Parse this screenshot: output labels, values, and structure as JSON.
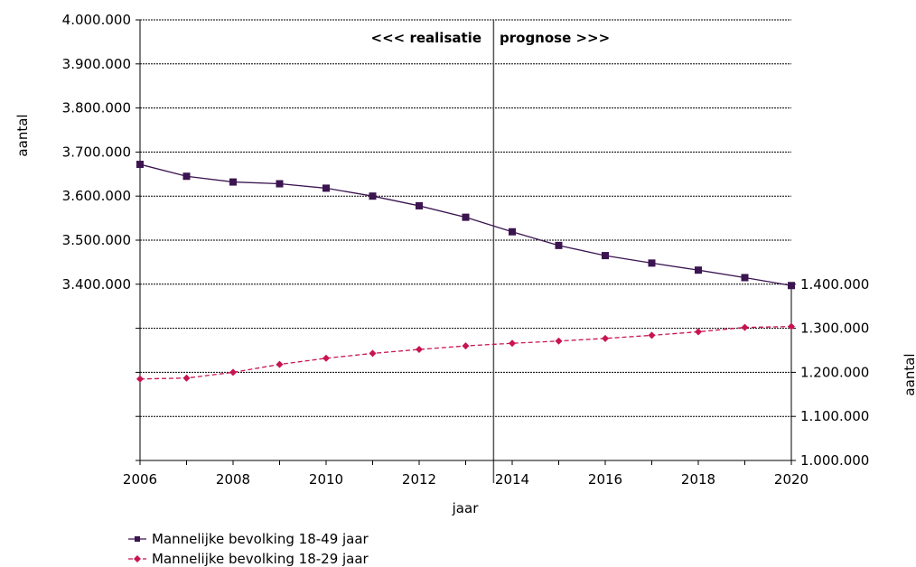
{
  "chart_data": {
    "type": "line",
    "x": [
      2006,
      2007,
      2008,
      2009,
      2010,
      2011,
      2012,
      2013,
      2014,
      2015,
      2016,
      2017,
      2018,
      2019,
      2020
    ],
    "x_ticks": [
      "2006",
      "2008",
      "2010",
      "2012",
      "2014",
      "2016",
      "2018",
      "2020"
    ],
    "xlabel": "jaar",
    "xlim": [
      2006,
      2020
    ],
    "ylabel_left": "aantal",
    "ylabel_right": "aantal",
    "ylim_left": [
      3000000,
      4000000
    ],
    "ylim_right": [
      1000000,
      1400000
    ],
    "y_ticks_left": [
      "4.000.000",
      "3.900.000",
      "3.800.000",
      "3.700.000",
      "3.600.000",
      "3.500.000",
      "3.400.000"
    ],
    "y_ticks_right": [
      "1.400.000",
      "1.300.000",
      "1.200.000",
      "1.100.000",
      "1.000.000"
    ],
    "grid": true,
    "divider_x": 2013.6,
    "annotations": {
      "left": "<<< realisatie",
      "right": "prognose >>>"
    },
    "legend_position": "bottom-left",
    "series": [
      {
        "name": "Mannelijke bevolking 18-49 jaar",
        "axis": "left",
        "color": "#3b1450",
        "marker": "square",
        "dash": "solid",
        "values": [
          3672000,
          3645000,
          3632000,
          3628000,
          3618000,
          3600000,
          3578000,
          3552000,
          3519000,
          3488000,
          3465000,
          3448000,
          3432000,
          3415000,
          3397000
        ]
      },
      {
        "name": "Mannelijke bevolking 18-29 jaar",
        "axis": "right",
        "color": "#c8154f",
        "marker": "diamond",
        "dash": "dashed",
        "values": [
          1185000,
          1187000,
          1200000,
          1218000,
          1232000,
          1243000,
          1252000,
          1260000,
          1266000,
          1271000,
          1277000,
          1284000,
          1292000,
          1302000,
          1304000
        ]
      }
    ]
  }
}
